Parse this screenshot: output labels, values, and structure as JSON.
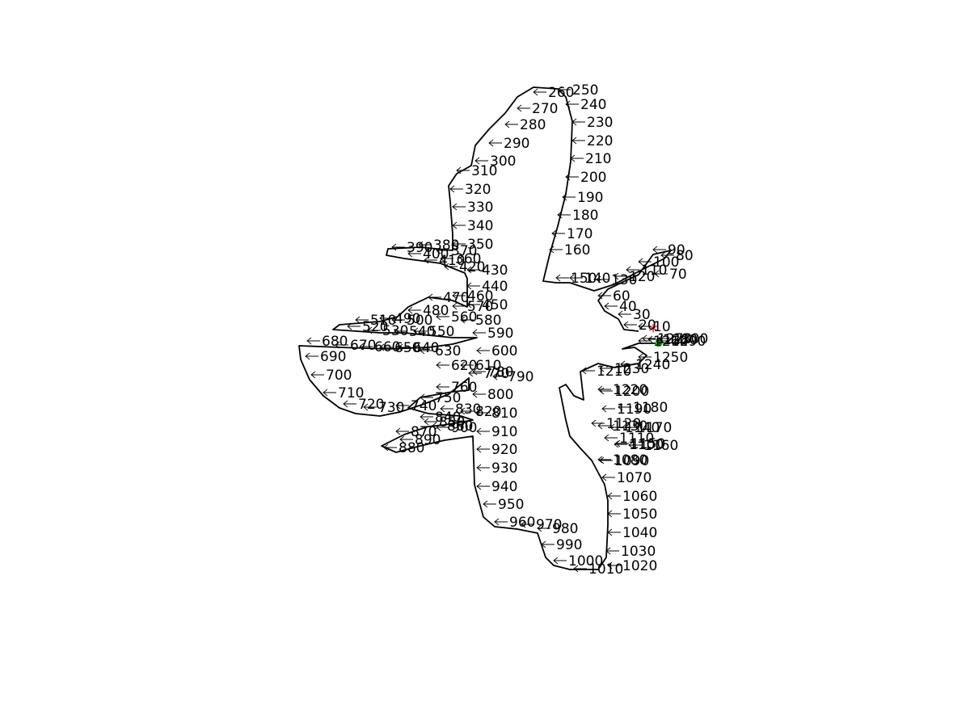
{
  "diagram": {
    "outline_color": "#000000",
    "start_marker": {
      "symbol": "*",
      "color": "#ff0000"
    },
    "end_marker": {
      "symbol": "●",
      "color": "#00cc00"
    },
    "labels": [
      "10",
      "20",
      "30",
      "40",
      "60",
      "70",
      "80",
      "90",
      "100",
      "110",
      "120",
      "130",
      "140",
      "150",
      "160",
      "170",
      "180",
      "190",
      "200",
      "210",
      "220",
      "230",
      "240",
      "250",
      "260",
      "270",
      "280",
      "290",
      "300",
      "310",
      "320",
      "330",
      "340",
      "350",
      "360",
      "370",
      "380",
      "390",
      "400",
      "410",
      "420",
      "430",
      "440",
      "450",
      "460",
      "470",
      "480",
      "490",
      "500",
      "510",
      "520",
      "530",
      "540",
      "550",
      "560",
      "570",
      "580",
      "590",
      "600",
      "610",
      "620",
      "630",
      "640",
      "650",
      "660",
      "670",
      "680",
      "690",
      "700",
      "710",
      "720",
      "730",
      "740",
      "750",
      "760",
      "770",
      "780",
      "790",
      "800",
      "810",
      "820",
      "830",
      "840",
      "850",
      "860",
      "870",
      "880",
      "890",
      "900",
      "910",
      "920",
      "930",
      "940",
      "950",
      "960",
      "970",
      "980",
      "990",
      "1000",
      "1010",
      "1020",
      "1030",
      "1040",
      "1050",
      "1060",
      "1070",
      "1080",
      "1090",
      "1100",
      "1110",
      "1120",
      "1130",
      "1140",
      "1150",
      "1160",
      "1170",
      "1180",
      "1190",
      "1200",
      "1210",
      "1220",
      "1230",
      "1240",
      "1250",
      "1260",
      "1270",
      "1280",
      "1290",
      "1300"
    ]
  }
}
